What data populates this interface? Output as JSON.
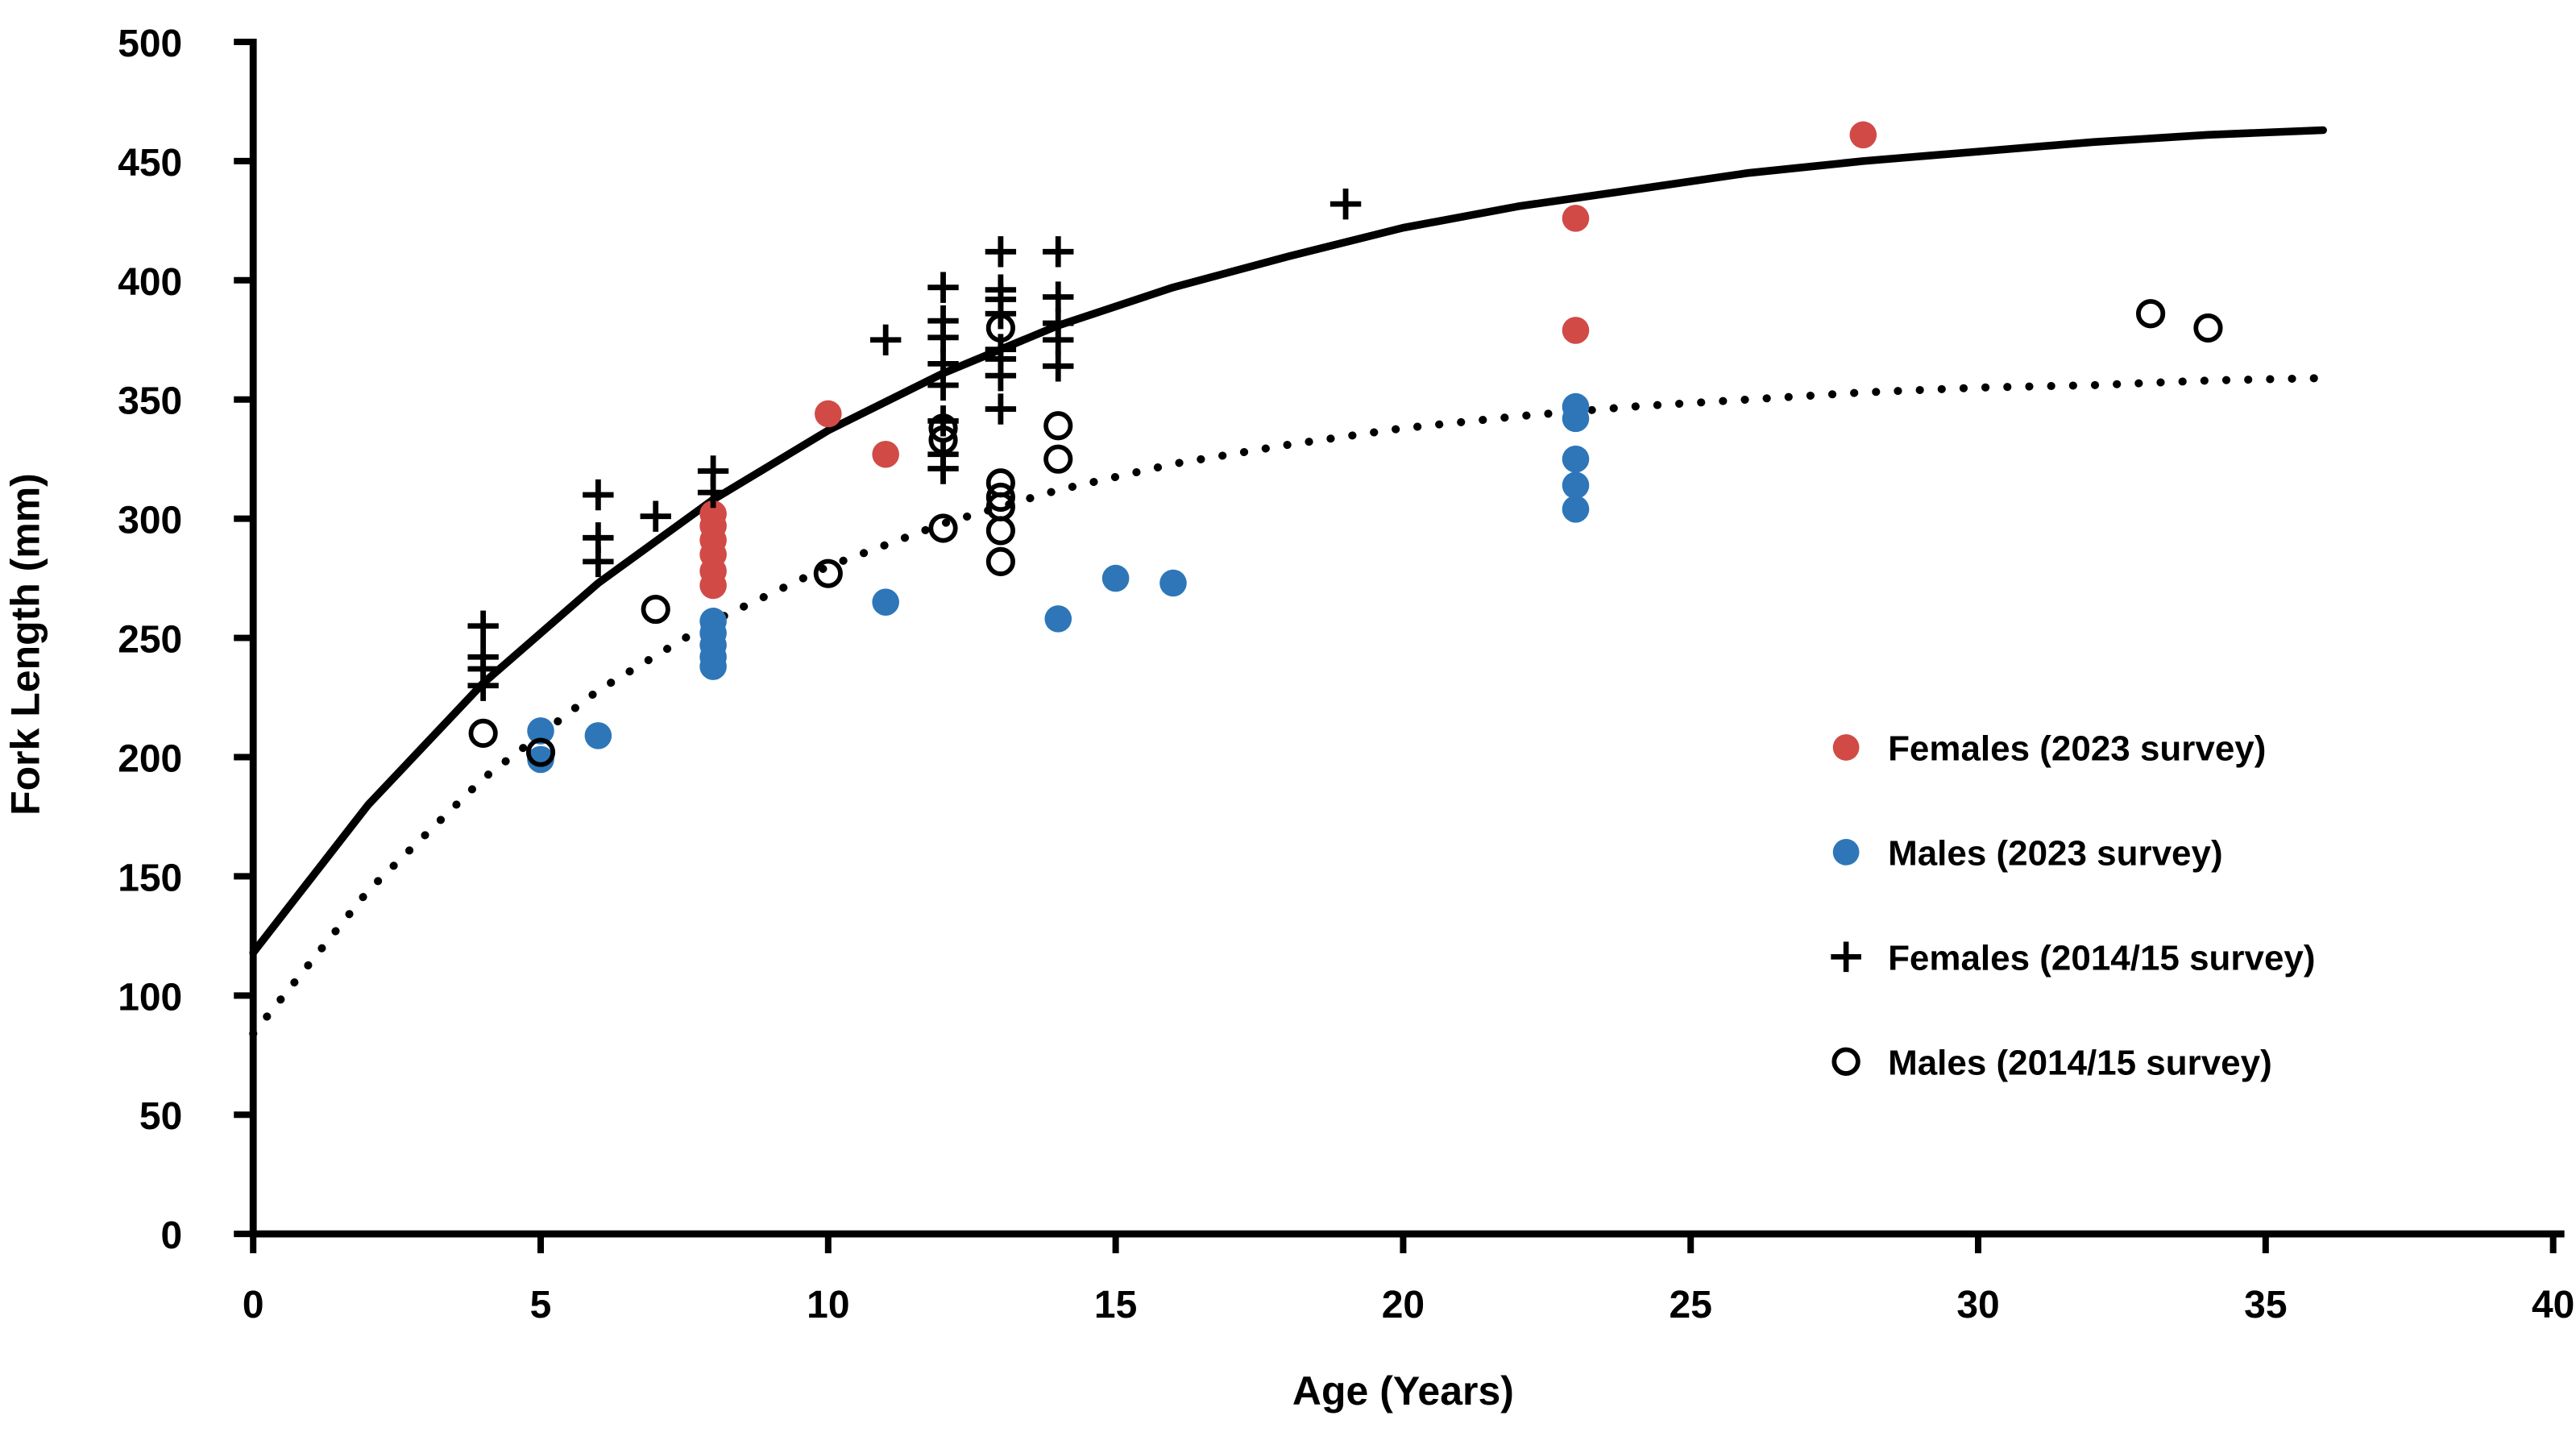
{
  "chart_data": {
    "type": "scatter",
    "title": "",
    "xlabel": "Age (Years)",
    "ylabel": "Fork Length (mm)",
    "xlim": [
      0,
      40
    ],
    "ylim": [
      0,
      500
    ],
    "x_ticks": [
      0,
      5,
      10,
      15,
      20,
      25,
      30,
      35,
      40
    ],
    "y_ticks": [
      0,
      50,
      100,
      150,
      200,
      250,
      300,
      350,
      400,
      450,
      500
    ],
    "grid": false,
    "legend_position": "right-middle",
    "axis_color": "#000000",
    "series": [
      {
        "name": "Females (2023 survey)",
        "marker": "filled-circle",
        "color": "#D14A46",
        "points": [
          [
            8,
            302
          ],
          [
            8,
            297
          ],
          [
            8,
            291
          ],
          [
            8,
            285
          ],
          [
            8,
            278
          ],
          [
            8,
            272
          ],
          [
            10,
            344
          ],
          [
            11,
            327
          ],
          [
            23,
            426
          ],
          [
            23,
            379
          ],
          [
            28,
            461
          ]
        ]
      },
      {
        "name": "Males (2023 survey)",
        "marker": "filled-circle",
        "color": "#2E76B8",
        "points": [
          [
            5,
            211
          ],
          [
            5,
            199
          ],
          [
            6,
            209
          ],
          [
            8,
            257
          ],
          [
            8,
            252
          ],
          [
            8,
            247
          ],
          [
            8,
            242
          ],
          [
            8,
            238
          ],
          [
            11,
            265
          ],
          [
            14,
            258
          ],
          [
            15,
            275
          ],
          [
            16,
            273
          ],
          [
            23,
            347
          ],
          [
            23,
            342
          ],
          [
            23,
            325
          ],
          [
            23,
            314
          ],
          [
            23,
            304
          ]
        ]
      },
      {
        "name": "Females (2014/15 survey)",
        "marker": "plus",
        "color": "#000000",
        "points": [
          [
            4,
            255
          ],
          [
            4,
            242
          ],
          [
            4,
            237
          ],
          [
            4,
            230
          ],
          [
            6,
            310
          ],
          [
            6,
            292
          ],
          [
            6,
            282
          ],
          [
            7,
            301
          ],
          [
            8,
            320
          ],
          [
            8,
            311
          ],
          [
            11,
            375
          ],
          [
            12,
            397
          ],
          [
            12,
            383
          ],
          [
            12,
            376
          ],
          [
            12,
            365
          ],
          [
            12,
            356
          ],
          [
            12,
            341
          ],
          [
            12,
            327
          ],
          [
            12,
            321
          ],
          [
            13,
            412
          ],
          [
            13,
            396
          ],
          [
            13,
            392
          ],
          [
            13,
            386
          ],
          [
            13,
            371
          ],
          [
            13,
            367
          ],
          [
            13,
            360
          ],
          [
            13,
            346
          ],
          [
            14,
            412
          ],
          [
            14,
            393
          ],
          [
            14,
            382
          ],
          [
            14,
            375
          ],
          [
            14,
            364
          ],
          [
            19,
            432
          ]
        ]
      },
      {
        "name": "Males (2014/15 survey)",
        "marker": "open-circle",
        "color": "#000000",
        "points": [
          [
            4,
            210
          ],
          [
            5,
            202
          ],
          [
            7,
            262
          ],
          [
            10,
            277
          ],
          [
            12,
            338
          ],
          [
            12,
            333
          ],
          [
            12,
            296
          ],
          [
            13,
            380
          ],
          [
            13,
            315
          ],
          [
            13,
            309
          ],
          [
            13,
            305
          ],
          [
            13,
            295
          ],
          [
            13,
            282
          ],
          [
            14,
            339
          ],
          [
            14,
            325
          ],
          [
            33,
            386
          ],
          [
            34,
            380
          ]
        ]
      }
    ],
    "curves": [
      {
        "name": "female-growth-curve",
        "style": "solid",
        "color": "#000000",
        "points": [
          [
            0,
            118
          ],
          [
            2,
            180
          ],
          [
            4,
            231
          ],
          [
            6,
            273
          ],
          [
            8,
            308
          ],
          [
            10,
            337
          ],
          [
            12,
            361
          ],
          [
            14,
            381
          ],
          [
            16,
            397
          ],
          [
            18,
            410
          ],
          [
            20,
            422
          ],
          [
            22,
            431
          ],
          [
            24,
            438
          ],
          [
            26,
            445
          ],
          [
            28,
            450
          ],
          [
            30,
            454
          ],
          [
            32,
            458
          ],
          [
            34,
            461
          ],
          [
            36,
            463
          ]
        ]
      },
      {
        "name": "male-growth-curve",
        "style": "dotted",
        "color": "#000000",
        "points": [
          [
            0,
            84
          ],
          [
            2,
            144
          ],
          [
            4,
            191
          ],
          [
            6,
            228
          ],
          [
            8,
            257
          ],
          [
            10,
            280
          ],
          [
            12,
            298
          ],
          [
            14,
            312
          ],
          [
            16,
            323
          ],
          [
            18,
            331
          ],
          [
            20,
            338
          ],
          [
            22,
            343
          ],
          [
            24,
            347
          ],
          [
            26,
            350
          ],
          [
            28,
            353
          ],
          [
            30,
            355
          ],
          [
            32,
            356
          ],
          [
            34,
            358
          ],
          [
            36,
            359
          ]
        ]
      }
    ],
    "legend": [
      {
        "label": "Females (2023 survey)",
        "marker": "filled-circle",
        "color": "#D14A46"
      },
      {
        "label": "Males (2023 survey)",
        "marker": "filled-circle",
        "color": "#2E76B8"
      },
      {
        "label": "Females (2014/15 survey)",
        "marker": "plus",
        "color": "#000000"
      },
      {
        "label": "Males (2014/15 survey)",
        "marker": "open-circle",
        "color": "#000000"
      }
    ]
  }
}
